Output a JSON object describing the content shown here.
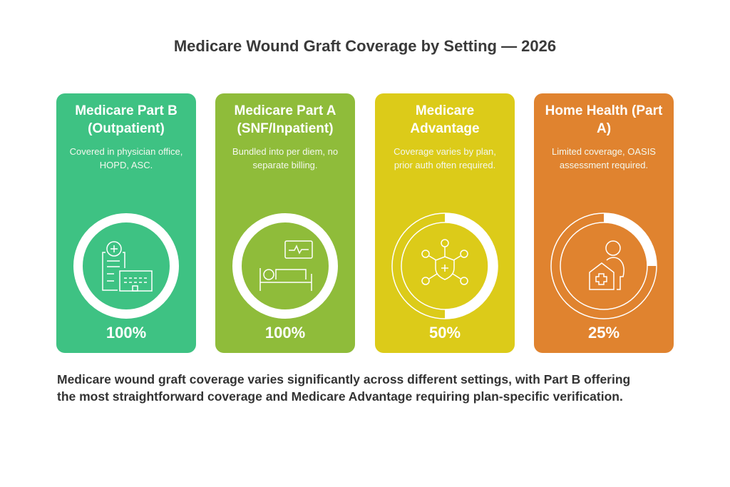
{
  "title": "Medicare Wound Graft Coverage by Setting — 2026",
  "cards": [
    {
      "heading": "Medicare Part B (Outpatient)",
      "description": "Covered in physician office, HOPD, ASC.",
      "percent_label": "100%",
      "coverage": 100,
      "color": "#3EC283",
      "icon": "clinic-document-icon"
    },
    {
      "heading": "Medicare Part A (SNF/Inpatient)",
      "description": "Bundled into per diem, no separate billing.",
      "percent_label": "100%",
      "coverage": 100,
      "color": "#8FBC3A",
      "icon": "hospital-bed-monitor-icon"
    },
    {
      "heading": "Medicare Advantage",
      "description": "Coverage varies by plan, prior auth often required.",
      "percent_label": "50%",
      "coverage": 50,
      "color": "#DCCB19",
      "icon": "shield-network-icon"
    },
    {
      "heading": "Home Health (Part A)",
      "description": "Limited coverage, OASIS assessment required.",
      "percent_label": "25%",
      "coverage": 25,
      "color": "#E0832F",
      "icon": "home-care-person-icon"
    }
  ],
  "footer": "Medicare wound graft coverage varies significantly across different settings, with Part B offering the most straightforward coverage and Medicare Advantage requiring plan-specific verification."
}
